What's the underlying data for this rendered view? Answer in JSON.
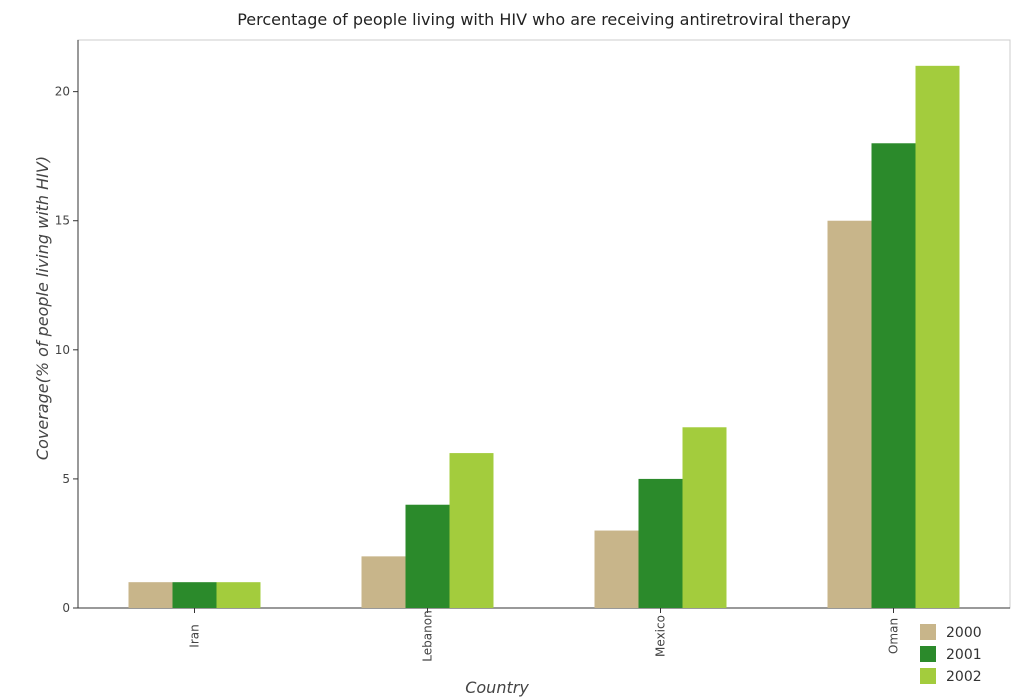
{
  "chart_data": {
    "type": "bar",
    "title": "Percentage of people living with HIV who are receiving antiretroviral therapy",
    "xlabel": "Country",
    "ylabel": "Coverage(% of people living with HIV)",
    "categories": [
      "Iran",
      "Lebanon",
      "Mexico",
      "Oman"
    ],
    "series": [
      {
        "name": "2000",
        "values": [
          1,
          2,
          3,
          15
        ],
        "color": "#c8b58a"
      },
      {
        "name": "2001",
        "values": [
          1,
          4,
          5,
          18
        ],
        "color": "#2b8a2b"
      },
      {
        "name": "2002",
        "values": [
          1,
          6,
          7,
          21
        ],
        "color": "#a3cc3d"
      }
    ],
    "ylim": [
      0,
      22
    ],
    "yticks": [
      "0",
      "5",
      "10",
      "15",
      "20"
    ],
    "legend_position": "bottom-right",
    "grid": false
  }
}
